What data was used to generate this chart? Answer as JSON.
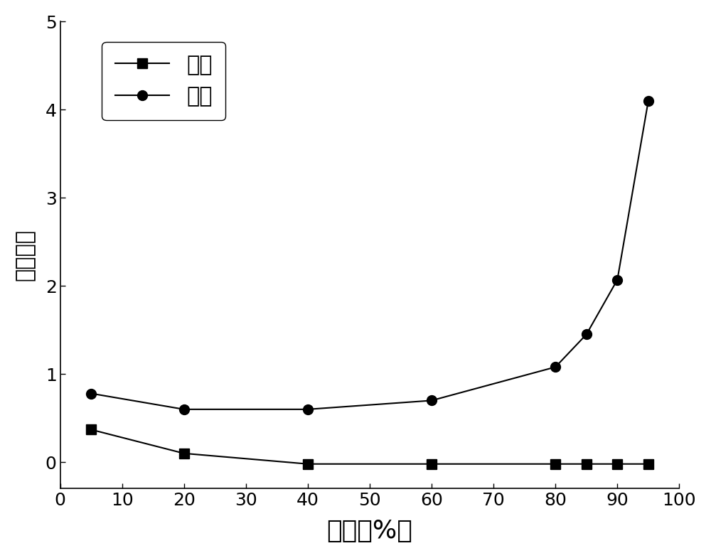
{
  "x": [
    5,
    20,
    40,
    60,
    80,
    85,
    90,
    95
  ],
  "jiaben_y": [
    0.37,
    0.1,
    -0.02,
    -0.02,
    -0.02,
    -0.02,
    -0.02,
    -0.02
  ],
  "liuqiao_y": [
    0.78,
    0.6,
    0.6,
    0.7,
    1.08,
    1.45,
    2.07,
    4.1
  ],
  "xlabel": "乙腕（%）",
  "ylabel": "保留因子",
  "legend_jiaben": "甲苯",
  "legend_liuqiao": "硫脲",
  "xlim": [
    0,
    100
  ],
  "ylim": [
    -0.3,
    5.0
  ],
  "yticks": [
    0,
    1,
    2,
    3,
    4,
    5
  ],
  "xticks": [
    0,
    10,
    20,
    30,
    40,
    50,
    60,
    70,
    80,
    90,
    100
  ],
  "line_color": "#000000",
  "marker_square": "s",
  "marker_circle": "o",
  "marker_size": 10,
  "linewidth": 1.5,
  "xlabel_fontsize": 26,
  "ylabel_fontsize": 22,
  "tick_fontsize": 18,
  "legend_fontsize": 22,
  "background_color": "#ffffff"
}
